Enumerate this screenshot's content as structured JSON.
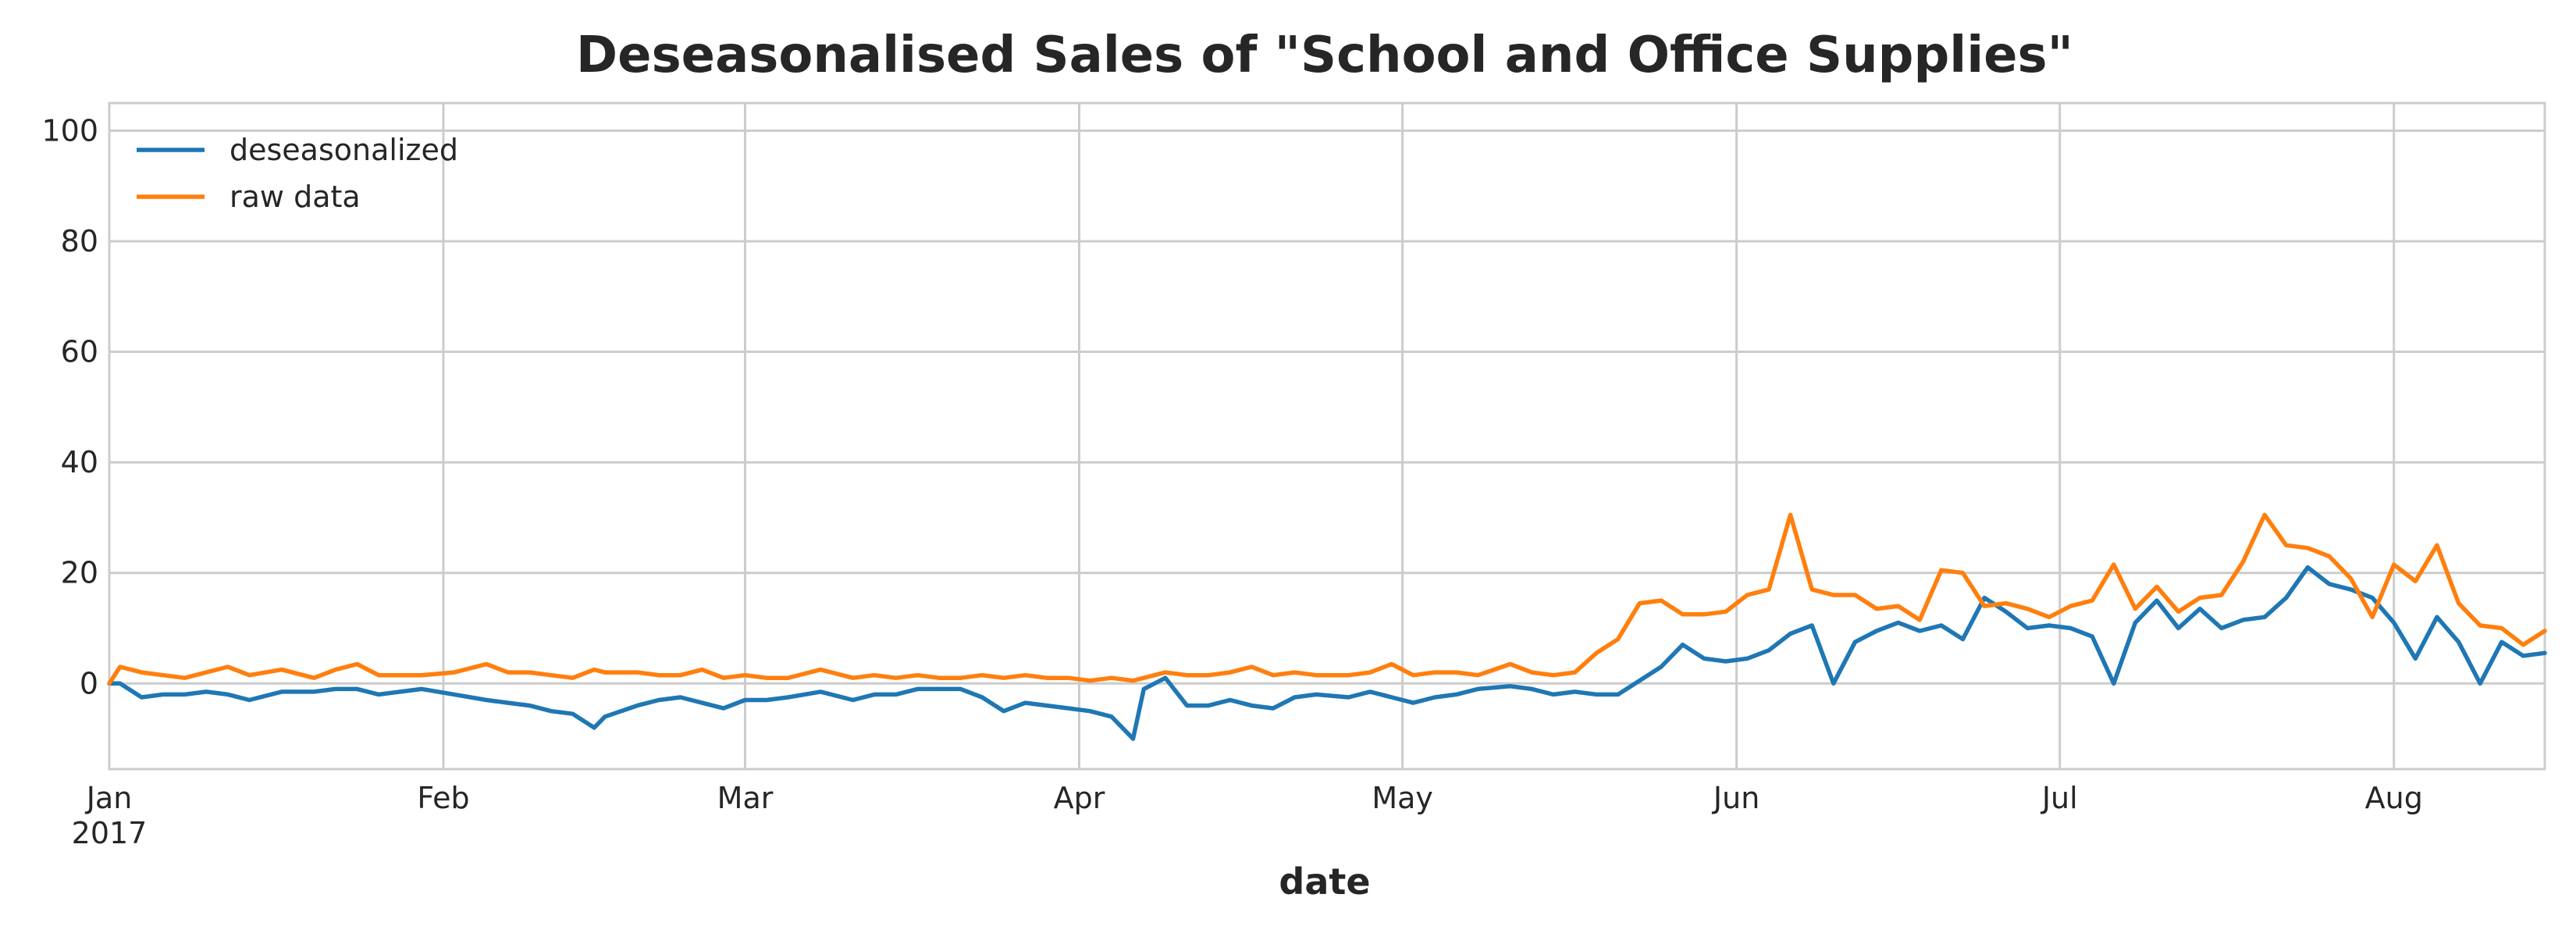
{
  "chart_data": {
    "type": "line",
    "title": "Deseasonalised Sales of \"School and Office Supplies\"",
    "xlabel": "date",
    "ylabel": "",
    "x_start": "2017-01-01",
    "x_end": "2017-08-15",
    "xlim": [
      "2017-01-01",
      "2017-08-15"
    ],
    "ylim": [
      -15.5,
      105
    ],
    "grid": true,
    "legend": "upper-left",
    "x_ticks": [
      {
        "date": "2017-01-01",
        "label": "Jan",
        "sublabel": "2017"
      },
      {
        "date": "2017-02-01",
        "label": "Feb"
      },
      {
        "date": "2017-03-01",
        "label": "Mar"
      },
      {
        "date": "2017-04-01",
        "label": "Apr"
      },
      {
        "date": "2017-05-01",
        "label": "May"
      },
      {
        "date": "2017-06-01",
        "label": "Jun"
      },
      {
        "date": "2017-07-01",
        "label": "Jul"
      },
      {
        "date": "2017-08-01",
        "label": "Aug"
      }
    ],
    "y_ticks": [
      0,
      20,
      40,
      60,
      80,
      100
    ],
    "series": [
      {
        "name": "deseasonalized",
        "color": "#1f77b4",
        "points": [
          [
            "2017-01-01",
            0
          ],
          [
            "2017-01-02",
            0
          ],
          [
            "2017-01-04",
            -2.5
          ],
          [
            "2017-01-06",
            -2
          ],
          [
            "2017-01-08",
            -2
          ],
          [
            "2017-01-10",
            -1.5
          ],
          [
            "2017-01-12",
            -2
          ],
          [
            "2017-01-14",
            -3
          ],
          [
            "2017-01-17",
            -1.5
          ],
          [
            "2017-01-20",
            -1.5
          ],
          [
            "2017-01-22",
            -1
          ],
          [
            "2017-01-24",
            -1
          ],
          [
            "2017-01-26",
            -2
          ],
          [
            "2017-01-28",
            -1.5
          ],
          [
            "2017-01-30",
            -1
          ],
          [
            "2017-02-02",
            -2
          ],
          [
            "2017-02-05",
            -3
          ],
          [
            "2017-02-07",
            -3.5
          ],
          [
            "2017-02-09",
            -4
          ],
          [
            "2017-02-11",
            -5
          ],
          [
            "2017-02-13",
            -5.5
          ],
          [
            "2017-02-15",
            -8
          ],
          [
            "2017-02-16",
            -6
          ],
          [
            "2017-02-19",
            -4
          ],
          [
            "2017-02-21",
            -3
          ],
          [
            "2017-02-23",
            -2.5
          ],
          [
            "2017-02-25",
            -3.5
          ],
          [
            "2017-02-27",
            -4.5
          ],
          [
            "2017-03-01",
            -3
          ],
          [
            "2017-03-03",
            -3
          ],
          [
            "2017-03-05",
            -2.5
          ],
          [
            "2017-03-08",
            -1.5
          ],
          [
            "2017-03-11",
            -3
          ],
          [
            "2017-03-13",
            -2
          ],
          [
            "2017-03-15",
            -2
          ],
          [
            "2017-03-17",
            -1
          ],
          [
            "2017-03-19",
            -1
          ],
          [
            "2017-03-21",
            -1
          ],
          [
            "2017-03-23",
            -2.5
          ],
          [
            "2017-03-25",
            -5
          ],
          [
            "2017-03-27",
            -3.5
          ],
          [
            "2017-03-29",
            -4
          ],
          [
            "2017-03-31",
            -4.5
          ],
          [
            "2017-04-02",
            -5
          ],
          [
            "2017-04-04",
            -6
          ],
          [
            "2017-04-06",
            -10
          ],
          [
            "2017-04-07",
            -1
          ],
          [
            "2017-04-09",
            1
          ],
          [
            "2017-04-11",
            -4
          ],
          [
            "2017-04-13",
            -4
          ],
          [
            "2017-04-15",
            -3
          ],
          [
            "2017-04-17",
            -4
          ],
          [
            "2017-04-19",
            -4.5
          ],
          [
            "2017-04-21",
            -2.5
          ],
          [
            "2017-04-23",
            -2
          ],
          [
            "2017-04-26",
            -2.5
          ],
          [
            "2017-04-28",
            -1.5
          ],
          [
            "2017-04-30",
            -2.5
          ],
          [
            "2017-05-02",
            -3.5
          ],
          [
            "2017-05-04",
            -2.5
          ],
          [
            "2017-05-06",
            -2
          ],
          [
            "2017-05-08",
            -1
          ],
          [
            "2017-05-11",
            -0.5
          ],
          [
            "2017-05-13",
            -1
          ],
          [
            "2017-05-15",
            -2
          ],
          [
            "2017-05-17",
            -1.5
          ],
          [
            "2017-05-19",
            -2
          ],
          [
            "2017-05-21",
            -2
          ],
          [
            "2017-05-23",
            0.5
          ],
          [
            "2017-05-25",
            3
          ],
          [
            "2017-05-27",
            7
          ],
          [
            "2017-05-29",
            4.5
          ],
          [
            "2017-05-31",
            4
          ],
          [
            "2017-06-02",
            4.5
          ],
          [
            "2017-06-04",
            6
          ],
          [
            "2017-06-06",
            9
          ],
          [
            "2017-06-08",
            10.5
          ],
          [
            "2017-06-10",
            0
          ],
          [
            "2017-06-12",
            7.5
          ],
          [
            "2017-06-14",
            9.5
          ],
          [
            "2017-06-16",
            11
          ],
          [
            "2017-06-18",
            9.5
          ],
          [
            "2017-06-20",
            10.5
          ],
          [
            "2017-06-22",
            8
          ],
          [
            "2017-06-24",
            15.5
          ],
          [
            "2017-06-26",
            13
          ],
          [
            "2017-06-28",
            10
          ],
          [
            "2017-06-30",
            10.5
          ],
          [
            "2017-07-02",
            10
          ],
          [
            "2017-07-04",
            8.5
          ],
          [
            "2017-07-06",
            0
          ],
          [
            "2017-07-08",
            11
          ],
          [
            "2017-07-10",
            15
          ],
          [
            "2017-07-12",
            10
          ],
          [
            "2017-07-14",
            13.5
          ],
          [
            "2017-07-16",
            10
          ],
          [
            "2017-07-18",
            11.5
          ],
          [
            "2017-07-20",
            12
          ],
          [
            "2017-07-22",
            15.5
          ],
          [
            "2017-07-24",
            21
          ],
          [
            "2017-07-26",
            18
          ],
          [
            "2017-07-28",
            17
          ],
          [
            "2017-07-30",
            15.5
          ],
          [
            "2017-08-01",
            11
          ],
          [
            "2017-08-03",
            4.5
          ],
          [
            "2017-08-05",
            12
          ],
          [
            "2017-08-07",
            7.5
          ],
          [
            "2017-08-09",
            0
          ],
          [
            "2017-08-11",
            7.5
          ],
          [
            "2017-08-13",
            5
          ],
          [
            "2017-08-15",
            5.5
          ]
        ]
      },
      {
        "name": "raw data",
        "color": "#ff7f0e",
        "points": [
          [
            "2017-01-01",
            0
          ],
          [
            "2017-01-02",
            3
          ],
          [
            "2017-01-04",
            2
          ],
          [
            "2017-01-06",
            1.5
          ],
          [
            "2017-01-08",
            1
          ],
          [
            "2017-01-10",
            2
          ],
          [
            "2017-01-12",
            3
          ],
          [
            "2017-01-14",
            1.5
          ],
          [
            "2017-01-17",
            2.5
          ],
          [
            "2017-01-20",
            1
          ],
          [
            "2017-01-22",
            2.5
          ],
          [
            "2017-01-24",
            3.5
          ],
          [
            "2017-01-26",
            1.5
          ],
          [
            "2017-01-28",
            1.5
          ],
          [
            "2017-01-30",
            1.5
          ],
          [
            "2017-02-02",
            2
          ],
          [
            "2017-02-05",
            3.5
          ],
          [
            "2017-02-07",
            2
          ],
          [
            "2017-02-09",
            2
          ],
          [
            "2017-02-11",
            1.5
          ],
          [
            "2017-02-13",
            1
          ],
          [
            "2017-02-15",
            2.5
          ],
          [
            "2017-02-16",
            2
          ],
          [
            "2017-02-19",
            2
          ],
          [
            "2017-02-21",
            1.5
          ],
          [
            "2017-02-23",
            1.5
          ],
          [
            "2017-02-25",
            2.5
          ],
          [
            "2017-02-27",
            1
          ],
          [
            "2017-03-01",
            1.5
          ],
          [
            "2017-03-03",
            1
          ],
          [
            "2017-03-05",
            1
          ],
          [
            "2017-03-08",
            2.5
          ],
          [
            "2017-03-11",
            1
          ],
          [
            "2017-03-13",
            1.5
          ],
          [
            "2017-03-15",
            1
          ],
          [
            "2017-03-17",
            1.5
          ],
          [
            "2017-03-19",
            1
          ],
          [
            "2017-03-21",
            1
          ],
          [
            "2017-03-23",
            1.5
          ],
          [
            "2017-03-25",
            1
          ],
          [
            "2017-03-27",
            1.5
          ],
          [
            "2017-03-29",
            1
          ],
          [
            "2017-03-31",
            1
          ],
          [
            "2017-04-02",
            0.5
          ],
          [
            "2017-04-04",
            1
          ],
          [
            "2017-04-06",
            0.5
          ],
          [
            "2017-04-07",
            1
          ],
          [
            "2017-04-09",
            2
          ],
          [
            "2017-04-11",
            1.5
          ],
          [
            "2017-04-13",
            1.5
          ],
          [
            "2017-04-15",
            2
          ],
          [
            "2017-04-17",
            3
          ],
          [
            "2017-04-19",
            1.5
          ],
          [
            "2017-04-21",
            2
          ],
          [
            "2017-04-23",
            1.5
          ],
          [
            "2017-04-26",
            1.5
          ],
          [
            "2017-04-28",
            2
          ],
          [
            "2017-04-30",
            3.5
          ],
          [
            "2017-05-02",
            1.5
          ],
          [
            "2017-05-04",
            2
          ],
          [
            "2017-05-06",
            2
          ],
          [
            "2017-05-08",
            1.5
          ],
          [
            "2017-05-11",
            3.5
          ],
          [
            "2017-05-13",
            2
          ],
          [
            "2017-05-15",
            1.5
          ],
          [
            "2017-05-17",
            2
          ],
          [
            "2017-05-19",
            5.5
          ],
          [
            "2017-05-21",
            8
          ],
          [
            "2017-05-23",
            14.5
          ],
          [
            "2017-05-25",
            15
          ],
          [
            "2017-05-27",
            12.5
          ],
          [
            "2017-05-29",
            12.5
          ],
          [
            "2017-05-31",
            13
          ],
          [
            "2017-06-02",
            16
          ],
          [
            "2017-06-04",
            17
          ],
          [
            "2017-06-06",
            30.5
          ],
          [
            "2017-06-08",
            17
          ],
          [
            "2017-06-10",
            16
          ],
          [
            "2017-06-12",
            16
          ],
          [
            "2017-06-14",
            13.5
          ],
          [
            "2017-06-16",
            14
          ],
          [
            "2017-06-18",
            11.5
          ],
          [
            "2017-06-20",
            20.5
          ],
          [
            "2017-06-22",
            20
          ],
          [
            "2017-06-24",
            14
          ],
          [
            "2017-06-26",
            14.5
          ],
          [
            "2017-06-28",
            13.5
          ],
          [
            "2017-06-30",
            12
          ],
          [
            "2017-07-02",
            14
          ],
          [
            "2017-07-04",
            15
          ],
          [
            "2017-07-06",
            21.5
          ],
          [
            "2017-07-08",
            13.5
          ],
          [
            "2017-07-10",
            17.5
          ],
          [
            "2017-07-12",
            13
          ],
          [
            "2017-07-14",
            15.5
          ],
          [
            "2017-07-16",
            16
          ],
          [
            "2017-07-18",
            22
          ],
          [
            "2017-07-20",
            30.5
          ],
          [
            "2017-07-22",
            25
          ],
          [
            "2017-07-24",
            24.5
          ],
          [
            "2017-07-26",
            23
          ],
          [
            "2017-07-28",
            19
          ],
          [
            "2017-07-30",
            12
          ],
          [
            "2017-08-01",
            21.5
          ],
          [
            "2017-08-03",
            18.5
          ],
          [
            "2017-08-05",
            25
          ],
          [
            "2017-08-07",
            14.5
          ],
          [
            "2017-08-09",
            10.5
          ],
          [
            "2017-08-11",
            10
          ],
          [
            "2017-08-13",
            7
          ],
          [
            "2017-08-15",
            9.5
          ]
        ]
      }
    ]
  }
}
